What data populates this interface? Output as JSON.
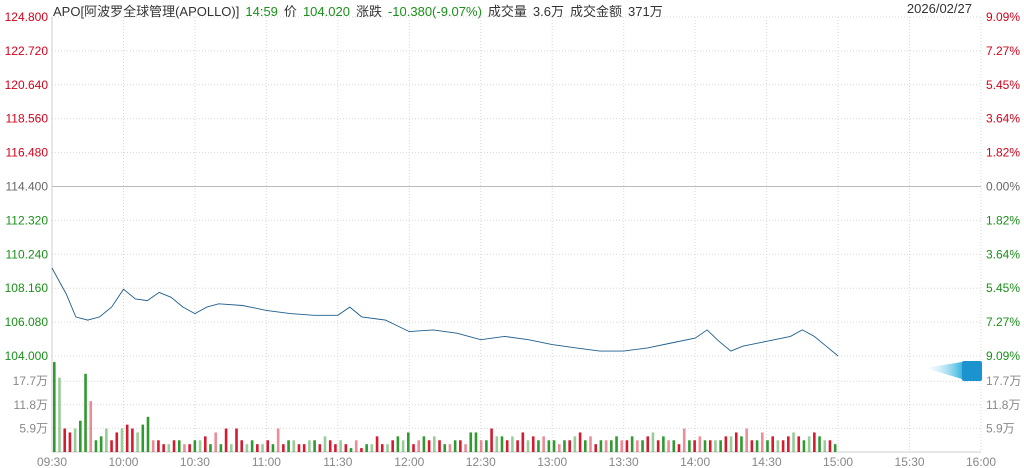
{
  "header": {
    "symbol": "APO[阿波罗全球管理(APOLLO)]",
    "time": "14:59",
    "price_label": "价",
    "price": "104.020",
    "change_label": "涨跌",
    "change": "-10.380(-9.07%)",
    "volume_label": "成交量",
    "volume": "3.6万",
    "amount_label": "成交金额",
    "amount": "371万",
    "date": "2026/02/27"
  },
  "colors": {
    "up": "#d0021b",
    "down": "#1a8f1a",
    "line": "#1f5f8b",
    "grid": "#d8d8d8",
    "axis_text": "#888"
  },
  "chart_data": [
    {
      "type": "line",
      "ylim": [
        104.0,
        124.8
      ],
      "prev_close": 114.4,
      "y_ticks_left": [
        "124.800",
        "122.720",
        "120.640",
        "118.560",
        "116.480",
        "114.400",
        "112.320",
        "110.240",
        "108.160",
        "106.080",
        "104.000"
      ],
      "y_ticks_right": [
        "9.09%",
        "7.27%",
        "5.45%",
        "3.64%",
        "1.82%",
        "0.00%",
        "1.82%",
        "3.64%",
        "5.45%",
        "7.27%",
        "9.09%"
      ],
      "x_ticks": [
        "09:30",
        "10:00",
        "10:30",
        "11:00",
        "11:30",
        "12:00",
        "12:30",
        "13:00",
        "13:30",
        "14:00",
        "14:30",
        "15:00",
        "15:30",
        "16:00"
      ],
      "x": [
        "09:30",
        "09:33",
        "09:36",
        "09:40",
        "09:45",
        "09:50",
        "09:55",
        "10:00",
        "10:05",
        "10:10",
        "10:15",
        "10:20",
        "10:25",
        "10:30",
        "10:35",
        "10:40",
        "10:50",
        "11:00",
        "11:10",
        "11:20",
        "11:30",
        "11:35",
        "11:40",
        "11:50",
        "12:00",
        "12:10",
        "12:20",
        "12:30",
        "12:40",
        "12:50",
        "13:00",
        "13:10",
        "13:20",
        "13:30",
        "13:40",
        "13:50",
        "14:00",
        "14:05",
        "14:10",
        "14:15",
        "14:20",
        "14:30",
        "14:40",
        "14:45",
        "14:50",
        "14:55",
        "15:00"
      ],
      "values": [
        109.4,
        108.6,
        107.8,
        106.4,
        106.2,
        106.4,
        107.0,
        108.1,
        107.5,
        107.4,
        107.9,
        107.6,
        107.0,
        106.6,
        107.0,
        107.2,
        107.1,
        106.8,
        106.6,
        106.5,
        106.5,
        107.0,
        106.4,
        106.2,
        105.5,
        105.6,
        105.4,
        105.0,
        105.2,
        105.0,
        104.7,
        104.5,
        104.3,
        104.3,
        104.5,
        104.8,
        105.1,
        105.6,
        104.9,
        104.3,
        104.6,
        104.9,
        105.2,
        105.6,
        105.2,
        104.6,
        104.0
      ]
    },
    {
      "type": "bar",
      "y_ticks": [
        "17.7万",
        "11.8万",
        "5.9万"
      ],
      "ylim": [
        0,
        23.6
      ],
      "values": [
        23,
        19,
        6,
        5,
        6,
        8,
        20,
        13,
        3,
        4,
        6,
        3,
        5,
        6,
        7,
        6,
        5,
        7,
        9,
        3,
        3,
        2,
        2,
        3,
        3,
        2,
        2,
        3,
        3,
        4,
        2,
        5,
        2,
        6,
        2,
        6,
        3,
        2,
        3,
        2,
        2,
        3,
        2,
        6,
        2,
        3,
        3,
        2,
        2,
        3,
        3,
        2,
        4,
        3,
        2,
        3,
        2,
        1,
        3,
        1,
        2,
        2,
        4,
        2,
        2,
        3,
        4,
        3,
        5,
        2,
        3,
        4,
        3,
        4,
        3,
        2,
        2,
        3,
        3,
        2,
        5,
        5,
        3,
        3,
        6,
        4,
        4,
        3,
        4,
        3,
        5,
        3,
        4,
        3,
        4,
        3,
        3,
        2,
        3,
        3,
        4,
        5,
        3,
        4,
        2,
        3,
        3,
        3,
        4,
        3,
        3,
        4,
        3,
        3,
        4,
        5,
        3,
        4,
        3,
        3,
        2,
        6,
        3,
        3,
        4,
        3,
        3,
        3,
        3,
        4,
        4,
        5,
        4,
        6,
        3,
        3,
        5,
        3,
        4,
        3,
        3,
        4,
        5,
        4,
        3,
        4,
        5,
        4,
        3,
        3,
        2
      ],
      "directions": "ggrrgggrgggrrgrrgggrrrgrgrrggrgrgrgrrggrgrgrrggrrggrgrrgrgrrggrrgrgggrrgrgrgrgrrggrgrggrgrrgrgrggrgrgrgrrgrggrrgrgrgrgrgrrgrrgrggrgrgrrgrgrgrrgrggrggrg"
    }
  ]
}
